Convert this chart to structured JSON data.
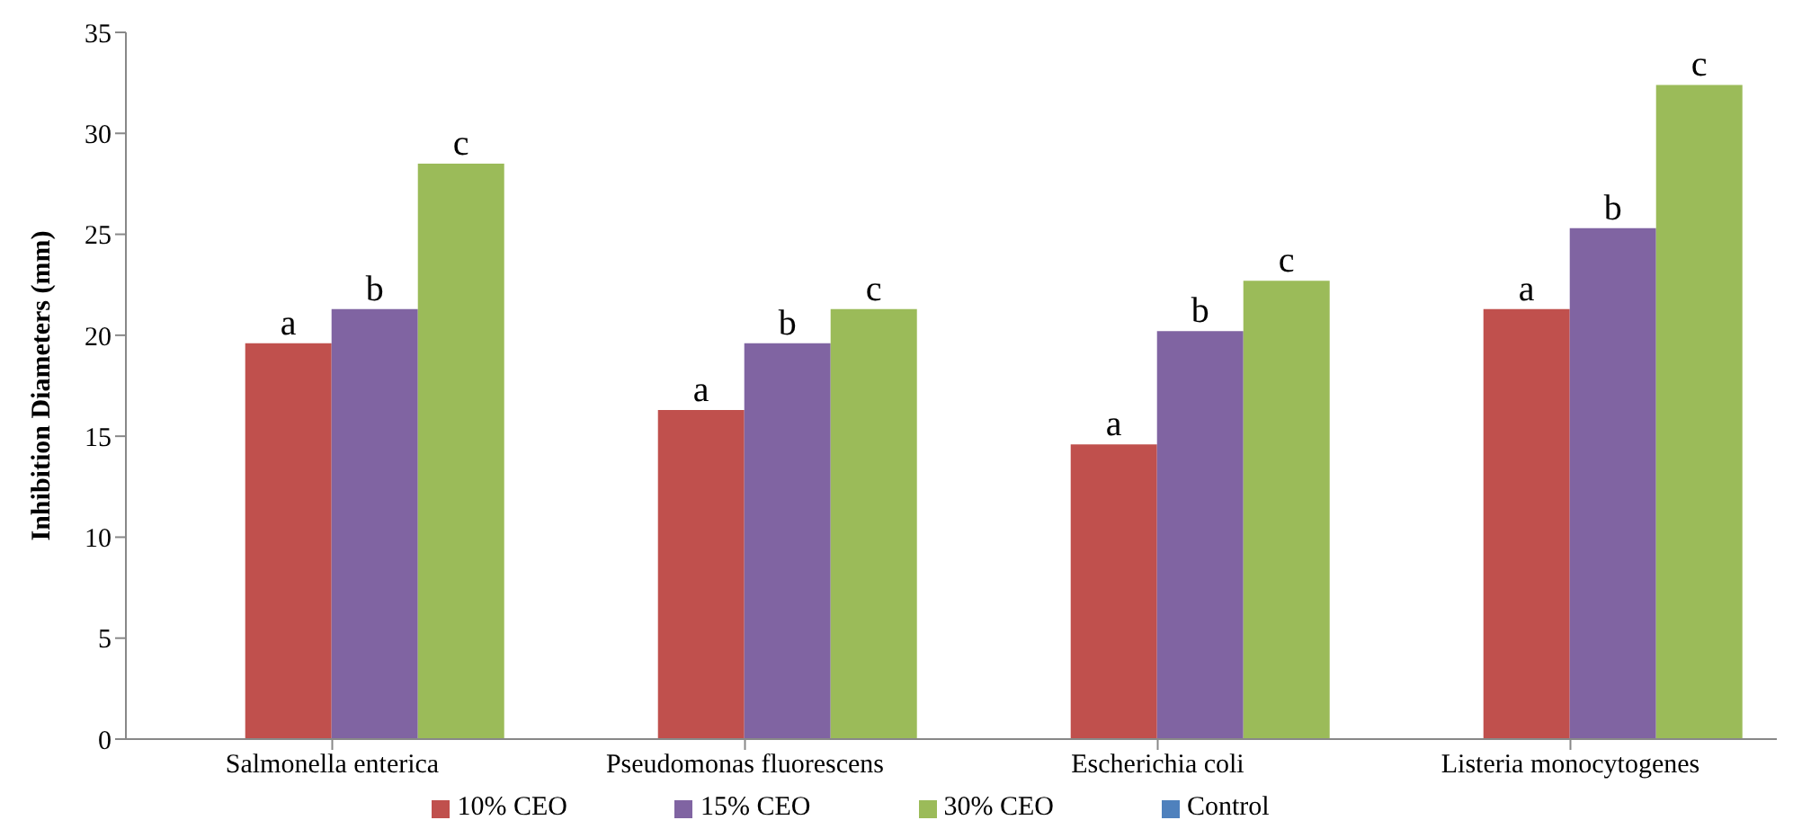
{
  "chart_data": {
    "type": "bar",
    "ylabel": "Inhibition Diameters (mm)",
    "categories": [
      "Salmonella enterica",
      "Pseudomonas fluorescens",
      "Escherichia coli",
      "Listeria monocytogenes"
    ],
    "series": [
      {
        "name": "Control",
        "color": "#4f81bd",
        "values": [
          0,
          0,
          0,
          0
        ]
      },
      {
        "name": "10% CEO",
        "color": "#c0504d",
        "values": [
          19.6,
          16.3,
          14.6,
          21.3
        ],
        "value_labels": [
          "a",
          "a",
          "a",
          "a"
        ]
      },
      {
        "name": "15% CEO",
        "color": "#8064a2",
        "values": [
          21.3,
          19.6,
          20.2,
          25.3
        ],
        "value_labels": [
          "b",
          "b",
          "b",
          "b"
        ]
      },
      {
        "name": "30% CEO",
        "color": "#9bbb59",
        "values": [
          28.5,
          21.3,
          22.7,
          32.4
        ],
        "value_labels": [
          "c",
          "c",
          "c",
          "c"
        ]
      }
    ],
    "ylim": [
      0,
      35
    ],
    "yticks": [
      0,
      5,
      10,
      15,
      20,
      25,
      30,
      35
    ],
    "grid": false,
    "legend": "bottom"
  }
}
